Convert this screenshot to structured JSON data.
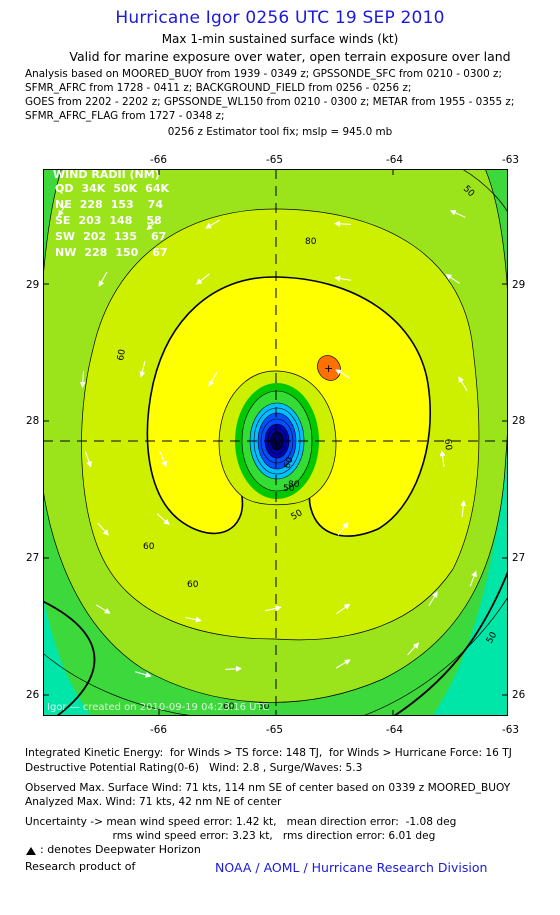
{
  "header": {
    "title": "Hurricane Igor 0256 UTC 19 SEP 2010",
    "subtitle1": "Max 1-min sustained surface winds (kt)",
    "subtitle2": "Valid for marine exposure over water, open terrain exposure over land",
    "analysis_lines": [
      "Analysis based on MOORED_BUOY from 1939 - 0349 z; GPSSONDE_SFC from 0210 - 0300 z;",
      "SFMR_AFRC from 1728 - 0411 z; BACKGROUND_FIELD from 0256 - 0256 z;",
      "GOES from 2202 - 2202 z; GPSSONDE_WL150 from 0210 - 0300 z; METAR from 1955 - 0355 z;",
      "SFMR_AFRC_FLAG from 1727 - 0348 z;"
    ],
    "fix_line": "0256 z Estimator tool fix; mslp = 945.0 mb"
  },
  "map": {
    "lon_ticks": [
      "-66",
      "-65",
      "-64",
      "-63"
    ],
    "lat_ticks": [
      "29",
      "28",
      "27",
      "26"
    ],
    "lon_range": [
      -66.98,
      -62.98
    ],
    "lat_range": [
      25.84,
      29.84
    ],
    "center": {
      "lon": -65.0,
      "lat": 27.85
    },
    "deepwater_marker": {
      "lon": -64.6,
      "lat": 28.38
    },
    "wind_radii": {
      "title": "WIND RADII (NM)",
      "header": [
        "QD",
        "34K",
        "50K",
        "64K"
      ],
      "rows": [
        [
          "NE",
          "228",
          "153",
          "74"
        ],
        [
          "SE",
          "203",
          "148",
          "58"
        ],
        [
          "SW",
          "202",
          "135",
          "67"
        ],
        [
          "NW",
          "228",
          "150",
          "67"
        ]
      ]
    },
    "contour_labels": [
      "80",
      "60",
      "60",
      "80",
      "60",
      "50",
      "50",
      "50",
      "60",
      "50",
      "60",
      "60",
      "50"
    ],
    "credit_text": "Igor — created on 2010-09-19 04:23:16 UTC",
    "colors": {
      "teal": "#00e5a8",
      "green": "#3cd83c",
      "light_green": "#9be31a",
      "yellow_green": "#ccf000",
      "yellow": "#ffff00",
      "inner_green": "#00c800",
      "cyan": "#00bfff",
      "blue": "#0050ff",
      "dark_blue": "#0000b4",
      "orange": "#ff7000"
    }
  },
  "footer": {
    "ike_line": "Integrated Kinetic Energy:  for Winds > TS force: 148 TJ,  for Winds > Hurricane Force: 16 TJ",
    "dpr_line": "Destructive Potential Rating(0-6)   Wind: 2.8 , Surge/Waves: 5.3",
    "obs_line": "Observed Max. Surface Wind: 71 kts, 114 nm SE of center based on 0339 z MOORED_BUOY",
    "analyzed_line": "Analyzed Max. Wind: 71 kts, 42 nm NE of center",
    "unc_line1": "Uncertainty -> mean wind speed error: 1.42 kt,   mean direction error:  -1.08 deg",
    "unc_line2": "                          rms wind speed error: 3.23 kt,   rms direction error: 6.01 deg",
    "legend_text": ": denotes Deepwater Horizon",
    "research_label": "Research product of",
    "org": "NOAA / AOML / Hurricane Research Division"
  }
}
